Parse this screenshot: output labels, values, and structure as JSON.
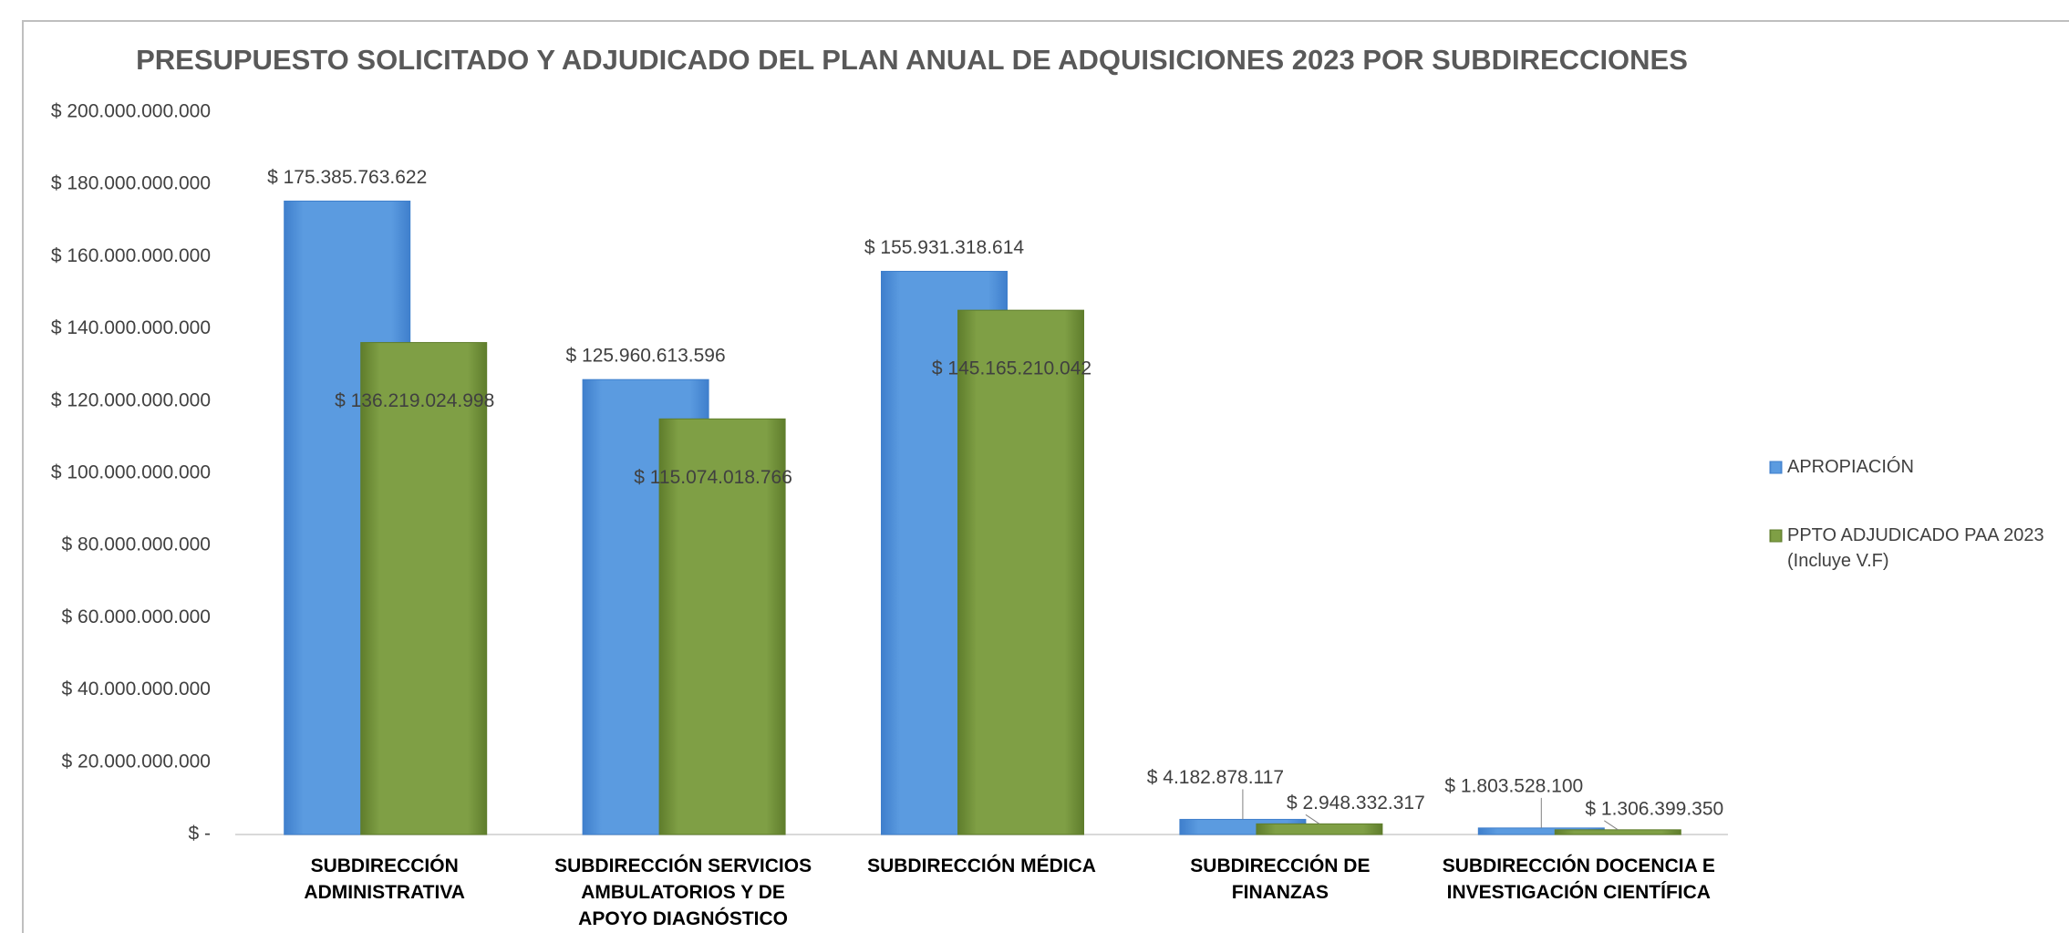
{
  "chart_data": {
    "type": "bar",
    "title": "PRESUPUESTO SOLICITADO Y ADJUDICADO DEL PLAN ANUAL DE ADQUISICIONES 2023 POR SUBDIRECCIONES",
    "categories": [
      "SUBDIRECCIÓN ADMINISTRATIVA",
      "SUBDIRECCIÓN SERVICIOS AMBULATORIOS Y DE APOYO DIAGNÓSTICO",
      "SUBDIRECCIÓN MÉDICA",
      "SUBDIRECCIÓN DE FINANZAS",
      "SUBDIRECCIÓN DOCENCIA E INVESTIGACIÓN CIENTÍFICA"
    ],
    "series": [
      {
        "name": "APROPIACIÓN",
        "color": "#5b9be0",
        "values": [
          175385763622,
          125960613596,
          155931318614,
          4182878117,
          1803528100
        ],
        "value_labels": [
          "$ 175.385.763.622",
          "$ 125.960.613.596",
          "$ 155.931.318.614",
          "$ 4.182.878.117",
          "$ 1.803.528.100"
        ]
      },
      {
        "name": "PPTO ADJUDICADO PAA 2023 (Incluye V.F)",
        "color": "#7f9f45",
        "values": [
          136219024998,
          115074018766,
          145165210042,
          2948332317,
          1306399350
        ],
        "value_labels": [
          "$ 136.219.024.998",
          "$ 115.074.018.766",
          "$ 145.165.210.042",
          "$ 2.948.332.317",
          "$ 1.306.399.350"
        ]
      }
    ],
    "ylim": [
      0,
      200000000000
    ],
    "yticks": [
      {
        "value": 0,
        "label": "$ -"
      },
      {
        "value": 20000000000,
        "label": "$ 20.000.000.000"
      },
      {
        "value": 40000000000,
        "label": "$ 40.000.000.000"
      },
      {
        "value": 60000000000,
        "label": "$ 60.000.000.000"
      },
      {
        "value": 80000000000,
        "label": "$ 80.000.000.000"
      },
      {
        "value": 100000000000,
        "label": "$ 100.000.000.000"
      },
      {
        "value": 120000000000,
        "label": "$ 120.000.000.000"
      },
      {
        "value": 140000000000,
        "label": "$ 140.000.000.000"
      },
      {
        "value": 160000000000,
        "label": "$ 160.000.000.000"
      },
      {
        "value": 180000000000,
        "label": "$ 180.000.000.000"
      },
      {
        "value": 200000000000,
        "label": "$ 200.000.000.000"
      }
    ],
    "grid": false,
    "legend": "right"
  }
}
